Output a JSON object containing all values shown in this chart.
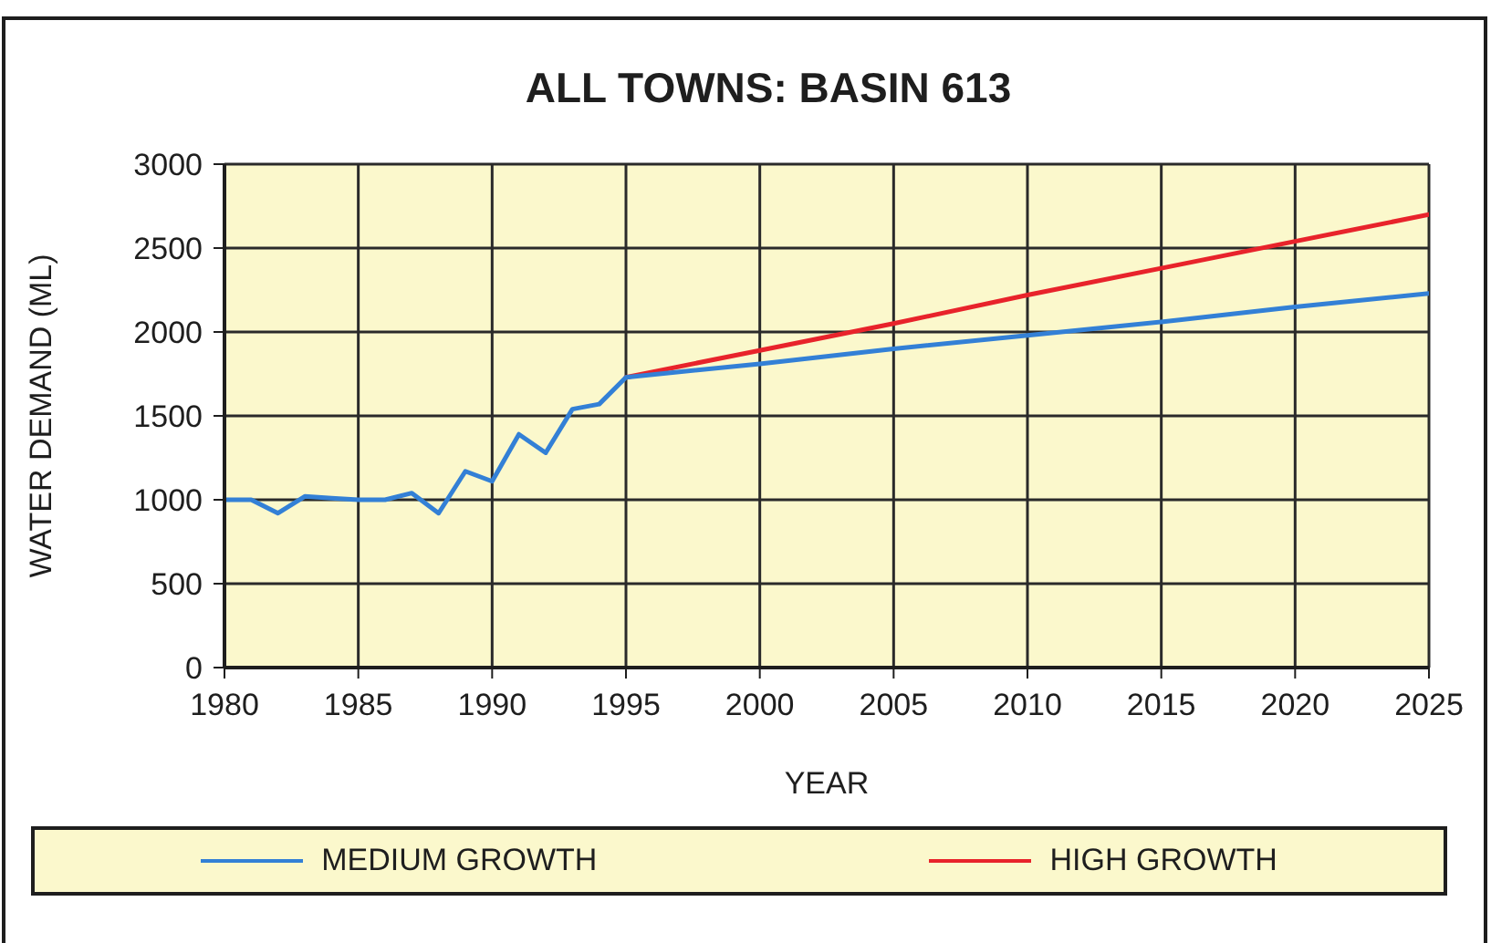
{
  "chart_data": {
    "type": "line",
    "title": "ALL TOWNS: BASIN 613",
    "xlabel": "YEAR",
    "ylabel": "WATER DEMAND (ML)",
    "xlim": [
      1980,
      2025
    ],
    "xticks": [
      1980,
      1985,
      1990,
      1995,
      2000,
      2005,
      2010,
      2015,
      2020,
      2025
    ],
    "ylim": [
      0,
      3000
    ],
    "yticks": [
      0,
      500,
      1000,
      1500,
      2000,
      2500,
      3000
    ],
    "grid": true,
    "legend": "bottom",
    "marker": "none",
    "line_style": "solid",
    "series": [
      {
        "name": "MEDIUM GROWTH",
        "color": "#3380d6",
        "x": [
          1980,
          1981,
          1982,
          1983,
          1984,
          1985,
          1986,
          1987,
          1988,
          1989,
          1990,
          1991,
          1992,
          1993,
          1994,
          1995,
          2000,
          2005,
          2010,
          2015,
          2020,
          2025
        ],
        "values": [
          1000,
          1000,
          920,
          1020,
          1010,
          1000,
          1000,
          1040,
          920,
          1170,
          1110,
          1390,
          1280,
          1540,
          1570,
          1730,
          1810,
          1900,
          1980,
          2060,
          2150,
          2230
        ]
      },
      {
        "name": "HIGH GROWTH",
        "color": "#e8232b",
        "x": [
          1995,
          2000,
          2005,
          2010,
          2015,
          2020,
          2025
        ],
        "values": [
          1730,
          1890,
          2050,
          2220,
          2380,
          2540,
          2700
        ]
      }
    ]
  }
}
